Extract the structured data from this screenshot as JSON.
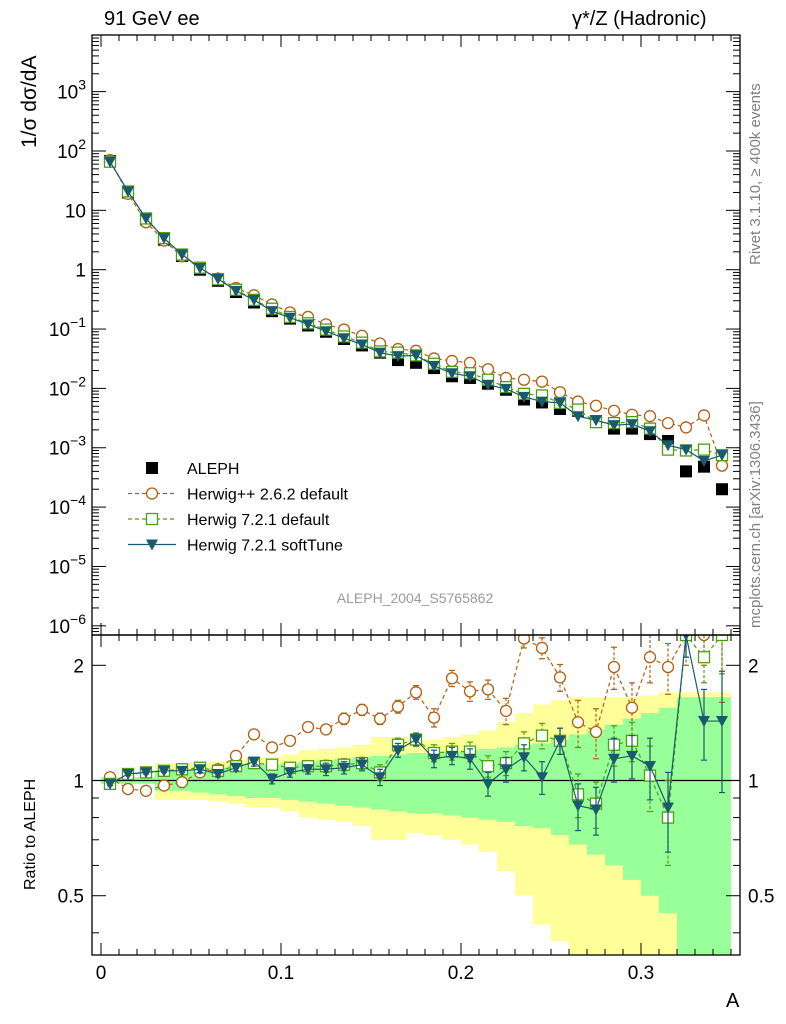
{
  "header": {
    "left": "91 GeV ee",
    "right_sym": "γ*/Z",
    "right_txt": "(Hadronic)"
  },
  "side": {
    "rivet": "Rivet 3.1.10, ≥ 400k events",
    "mcplots": "mcplots.cern.ch [arXiv:1306.3436]"
  },
  "chart_data": {
    "type": "scatter",
    "analysis_id": "ALEPH_2004_S5765862",
    "xlabel": "A",
    "ylabel_main": "1/σ  dσ/dA",
    "ylabel_ratio": "Ratio to ALEPH",
    "xlim": [
      -0.005,
      0.355
    ],
    "ylim_main": [
      7e-07,
      9000
    ],
    "ylog": true,
    "ylim_ratio": [
      0.35,
      2.4
    ],
    "ratio_log": true,
    "x_ticks": [
      0,
      0.1,
      0.2,
      0.3
    ],
    "x_tick_labels": [
      "0",
      "0.1",
      "0.2",
      "0.3"
    ],
    "y_ticks_main": [
      1e-06,
      1e-05,
      0.0001,
      0.001,
      0.01,
      0.1,
      1,
      10,
      100,
      1000
    ],
    "y_tick_labels_main": [
      {
        "base": "10",
        "exp": "−6"
      },
      {
        "base": "10",
        "exp": "−5"
      },
      {
        "base": "10",
        "exp": "−4"
      },
      {
        "base": "10",
        "exp": "−3"
      },
      {
        "base": "10",
        "exp": "−2"
      },
      {
        "base": "10",
        "exp": "−1"
      },
      {
        "base": "1",
        "exp": ""
      },
      {
        "base": "10",
        "exp": ""
      },
      {
        "base": "10",
        "exp": "2"
      },
      {
        "base": "10",
        "exp": "3"
      }
    ],
    "y_ticks_ratio": [
      0.5,
      1,
      2
    ],
    "y_tick_labels_ratio": [
      "0.5",
      "1",
      "2"
    ],
    "legend": {
      "placement": "lower-left",
      "entries": [
        {
          "key": "aleph",
          "label": "ALEPH",
          "marker": "square-filled",
          "color": "#000000"
        },
        {
          "key": "hpp",
          "label": "Herwig++ 2.6.2 default",
          "marker": "circle-open",
          "color": "#b25f11",
          "line": "dashed"
        },
        {
          "key": "h72",
          "label": "Herwig 7.2.1 default",
          "marker": "square-open",
          "color": "#4c9f0f",
          "line": "dashed"
        },
        {
          "key": "h72s",
          "label": "Herwig 7.2.1 softTune",
          "marker": "triangle-down",
          "color": "#1b5a6e",
          "line": "solid"
        }
      ]
    },
    "x": [
      0.005,
      0.015,
      0.025,
      0.035,
      0.045,
      0.055,
      0.065,
      0.075,
      0.085,
      0.095,
      0.105,
      0.115,
      0.125,
      0.135,
      0.145,
      0.155,
      0.165,
      0.175,
      0.185,
      0.195,
      0.205,
      0.215,
      0.225,
      0.235,
      0.245,
      0.255,
      0.265,
      0.275,
      0.285,
      0.295,
      0.305,
      0.315,
      0.325,
      0.335,
      0.345
    ],
    "series": [
      {
        "name": "ALEPH",
        "values": [
          68,
          20,
          7,
          3.2,
          1.7,
          1.0,
          0.65,
          0.42,
          0.28,
          0.2,
          0.15,
          0.115,
          0.09,
          0.068,
          0.053,
          0.04,
          0.03,
          0.027,
          0.022,
          0.016,
          0.015,
          0.012,
          0.0095,
          0.0065,
          0.0058,
          0.0045,
          0.0042,
          0.0028,
          0.0021,
          0.0021,
          0.0017,
          0.0013,
          0.0004,
          0.00048,
          0.0002
        ]
      },
      {
        "name": "Herwig++ 2.6.2 default",
        "values": [
          70,
          19,
          6.3,
          3.1,
          1.68,
          1.07,
          0.71,
          0.49,
          0.37,
          0.26,
          0.19,
          0.16,
          0.12,
          0.098,
          0.077,
          0.057,
          0.046,
          0.043,
          0.032,
          0.029,
          0.027,
          0.021,
          0.015,
          0.014,
          0.013,
          0.0086,
          0.006,
          0.0051,
          0.0042,
          0.0036,
          0.0034,
          0.0026,
          0.0022,
          0.0035,
          0.0005
        ]
      },
      {
        "name": "Herwig 7.2.1 default",
        "values": [
          66,
          20.8,
          7.3,
          3.4,
          1.8,
          1.08,
          0.69,
          0.46,
          0.31,
          0.22,
          0.16,
          0.125,
          0.098,
          0.075,
          0.059,
          0.042,
          0.04,
          0.036,
          0.026,
          0.019,
          0.018,
          0.014,
          0.0105,
          0.0081,
          0.0076,
          0.0057,
          0.0044,
          0.0027,
          0.0026,
          0.0027,
          0.0021,
          0.00093,
          0.0009,
          0.00093,
          0.00075
        ]
      },
      {
        "name": "Herwig 7.2.1 softTune",
        "values": [
          66,
          20.8,
          7.3,
          3.4,
          1.8,
          1.07,
          0.7,
          0.44,
          0.31,
          0.2,
          0.155,
          0.12,
          0.092,
          0.07,
          0.055,
          0.04,
          0.035,
          0.036,
          0.024,
          0.018,
          0.016,
          0.0115,
          0.0098,
          0.0072,
          0.006,
          0.0057,
          0.0034,
          0.0029,
          0.0024,
          0.0025,
          0.0019,
          0.0011,
          0.00093,
          0.0006,
          0.00075
        ]
      }
    ],
    "ratio_series": [
      {
        "key": "hpp",
        "values": [
          1.02,
          0.95,
          0.94,
          0.97,
          0.99,
          1.05,
          1.07,
          1.16,
          1.32,
          1.22,
          1.27,
          1.38,
          1.36,
          1.45,
          1.53,
          1.45,
          1.56,
          1.7,
          1.46,
          1.85,
          1.71,
          1.73,
          1.52,
          2.35,
          2.22,
          1.86,
          1.42,
          1.34,
          1.98,
          1.55,
          2.1,
          1.98,
          2.4,
          2.4,
          2.4
        ],
        "err": [
          0.01,
          0.01,
          0.01,
          0.01,
          0.01,
          0.02,
          0.02,
          0.03,
          0.03,
          0.03,
          0.03,
          0.04,
          0.04,
          0.05,
          0.05,
          0.05,
          0.06,
          0.07,
          0.08,
          0.09,
          0.1,
          0.1,
          0.12,
          0.13,
          0.14,
          0.15,
          0.2,
          0.2,
          0.25,
          0.25,
          0.3,
          0.3,
          0.4,
          0.4,
          0.8
        ]
      },
      {
        "key": "h72",
        "values": [
          0.98,
          1.04,
          1.05,
          1.06,
          1.07,
          1.08,
          1.06,
          1.09,
          1.11,
          1.1,
          1.08,
          1.09,
          1.09,
          1.1,
          1.11,
          1.05,
          1.24,
          1.28,
          1.18,
          1.19,
          1.19,
          1.09,
          1.11,
          1.25,
          1.31,
          1.27,
          0.92,
          0.87,
          1.24,
          1.27,
          1.03,
          0.8,
          2.4,
          2.1,
          2.4
        ],
        "err": [
          0.01,
          0.01,
          0.01,
          0.01,
          0.01,
          0.02,
          0.02,
          0.02,
          0.03,
          0.03,
          0.03,
          0.03,
          0.04,
          0.04,
          0.04,
          0.05,
          0.05,
          0.05,
          0.06,
          0.06,
          0.07,
          0.07,
          0.08,
          0.09,
          0.1,
          0.1,
          0.12,
          0.12,
          0.15,
          0.15,
          0.2,
          0.2,
          0.3,
          0.3,
          0.5
        ]
      },
      {
        "key": "h72s",
        "values": [
          0.98,
          1.04,
          1.05,
          1.06,
          1.06,
          1.07,
          1.04,
          1.08,
          1.12,
          1.01,
          1.05,
          1.07,
          1.07,
          1.08,
          1.1,
          1.02,
          1.2,
          1.28,
          1.14,
          1.16,
          1.14,
          0.98,
          1.07,
          1.15,
          1.02,
          1.27,
          0.86,
          0.84,
          1.14,
          1.16,
          1.09,
          0.85,
          2.4,
          1.43,
          1.43
        ],
        "err": [
          0.01,
          0.01,
          0.01,
          0.01,
          0.01,
          0.02,
          0.02,
          0.02,
          0.03,
          0.03,
          0.03,
          0.03,
          0.04,
          0.04,
          0.04,
          0.05,
          0.05,
          0.05,
          0.06,
          0.06,
          0.07,
          0.07,
          0.08,
          0.09,
          0.1,
          0.1,
          0.12,
          0.12,
          0.15,
          0.15,
          0.2,
          0.2,
          0.3,
          0.3,
          0.5
        ]
      }
    ],
    "ratio_bands": [
      {
        "x0": 0.0,
        "x1": 0.03,
        "stat": 0.02,
        "total": 0.02
      },
      {
        "x0": 0.03,
        "x1": 0.05,
        "stat": 0.06,
        "total": 0.11
      },
      {
        "x0": 0.05,
        "x1": 0.06,
        "stat": 0.07,
        "total": 0.11
      },
      {
        "x0": 0.06,
        "x1": 0.07,
        "stat": 0.08,
        "total": 0.12
      },
      {
        "x0": 0.07,
        "x1": 0.08,
        "stat": 0.09,
        "total": 0.13
      },
      {
        "x0": 0.08,
        "x1": 0.09,
        "stat": 0.1,
        "total": 0.15
      },
      {
        "x0": 0.09,
        "x1": 0.1,
        "stat": 0.1,
        "total": 0.15
      },
      {
        "x0": 0.1,
        "x1": 0.11,
        "stat": 0.11,
        "total": 0.17
      },
      {
        "x0": 0.11,
        "x1": 0.12,
        "stat": 0.12,
        "total": 0.2
      },
      {
        "x0": 0.12,
        "x1": 0.13,
        "stat": 0.13,
        "total": 0.21
      },
      {
        "x0": 0.13,
        "x1": 0.14,
        "stat": 0.14,
        "total": 0.22
      },
      {
        "x0": 0.14,
        "x1": 0.15,
        "stat": 0.15,
        "total": 0.24
      },
      {
        "x0": 0.15,
        "x1": 0.16,
        "stat": 0.16,
        "total": 0.3
      },
      {
        "x0": 0.16,
        "x1": 0.17,
        "stat": 0.17,
        "total": 0.3
      },
      {
        "x0": 0.17,
        "x1": 0.18,
        "stat": 0.18,
        "total": 0.27
      },
      {
        "x0": 0.18,
        "x1": 0.19,
        "stat": 0.18,
        "total": 0.28
      },
      {
        "x0": 0.19,
        "x1": 0.2,
        "stat": 0.19,
        "total": 0.3
      },
      {
        "x0": 0.2,
        "x1": 0.21,
        "stat": 0.2,
        "total": 0.32
      },
      {
        "x0": 0.21,
        "x1": 0.22,
        "stat": 0.21,
        "total": 0.35
      },
      {
        "x0": 0.22,
        "x1": 0.23,
        "stat": 0.22,
        "total": 0.42
      },
      {
        "x0": 0.23,
        "x1": 0.24,
        "stat": 0.24,
        "total": 0.5
      },
      {
        "x0": 0.24,
        "x1": 0.25,
        "stat": 0.25,
        "total": 0.58
      },
      {
        "x0": 0.25,
        "x1": 0.26,
        "stat": 0.28,
        "total": 0.62
      },
      {
        "x0": 0.26,
        "x1": 0.27,
        "stat": 0.32,
        "total": 0.65
      },
      {
        "x0": 0.27,
        "x1": 0.28,
        "stat": 0.36,
        "total": 0.65
      },
      {
        "x0": 0.28,
        "x1": 0.29,
        "stat": 0.4,
        "total": 0.65
      },
      {
        "x0": 0.29,
        "x1": 0.3,
        "stat": 0.45,
        "total": 0.65
      },
      {
        "x0": 0.3,
        "x1": 0.31,
        "stat": 0.5,
        "total": 0.67
      },
      {
        "x0": 0.31,
        "x1": 0.32,
        "stat": 0.55,
        "total": 0.7
      },
      {
        "x0": 0.32,
        "x1": 0.35,
        "stat": 0.65,
        "total": 0.7
      }
    ]
  }
}
